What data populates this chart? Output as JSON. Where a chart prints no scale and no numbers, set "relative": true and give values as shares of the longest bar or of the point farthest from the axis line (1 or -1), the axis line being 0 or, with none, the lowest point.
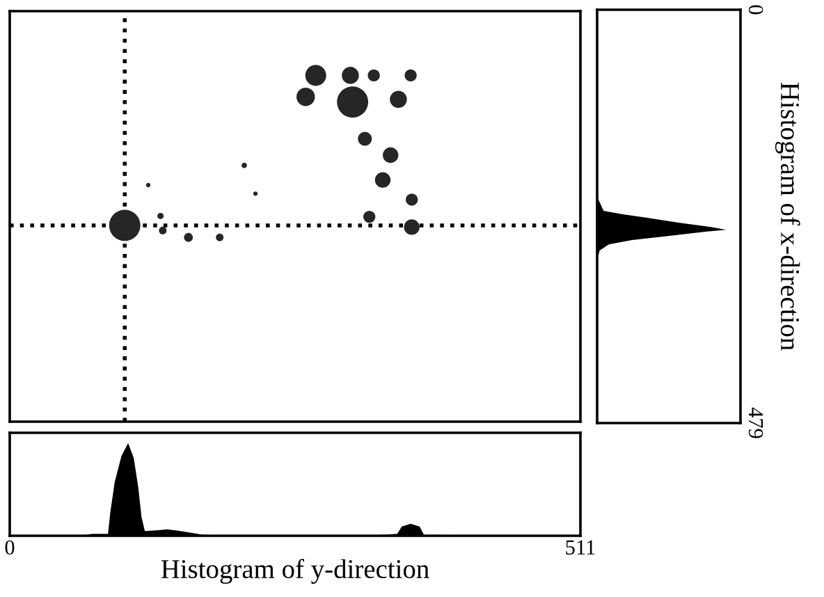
{
  "chart_data": [
    {
      "type": "bubble",
      "x": [
        103,
        274,
        305,
        326,
        359,
        265,
        307,
        348,
        318,
        341,
        334,
        360,
        322,
        360,
        135,
        137,
        160,
        188,
        210,
        124,
        220
      ],
      "values": [
        250,
        75,
        75,
        75,
        75,
        100,
        106,
        103,
        149,
        168,
        197,
        220,
        240,
        252,
        239,
        256,
        264,
        264,
        180,
        203,
        213
      ],
      "sizes": [
        1,
        0.45,
        0.3,
        0.15,
        0.15,
        0.35,
        1,
        0.3,
        0.2,
        0.25,
        0.25,
        0.15,
        0.15,
        0.25,
        0.04,
        0.06,
        0.08,
        0.06,
        0.03,
        0.02,
        0.02
      ],
      "color": "#262626",
      "marker": "circle",
      "xlim": [
        0,
        511
      ],
      "ylim": [
        479,
        0
      ],
      "tick_labels": false,
      "ref_lines": [
        {
          "axis": "x",
          "value": 103,
          "line_style": "dotted",
          "color": "#000000"
        },
        {
          "axis": "y",
          "value": 250,
          "line_style": "dotted",
          "color": "#000000"
        }
      ]
    },
    {
      "type": "area",
      "x": [
        0,
        62,
        74,
        88,
        90,
        94,
        100,
        106,
        111,
        115,
        118,
        121,
        133,
        141,
        153,
        174,
        207,
        320,
        347,
        351,
        359,
        367,
        371,
        511
      ],
      "values": [
        0,
        0,
        0.02,
        0.02,
        0.25,
        0.58,
        0.86,
        1,
        0.84,
        0.53,
        0.2,
        0.05,
        0.06,
        0.07,
        0.05,
        0.01,
        0,
        0,
        0.02,
        0.1,
        0.13,
        0.1,
        0.01,
        0
      ],
      "relative": true,
      "color": "#000000",
      "xlim": [
        0,
        511
      ],
      "xticks": [
        0,
        511
      ],
      "xlabel": "Histogram of y-direction",
      "tick_labels": "x"
    },
    {
      "type": "area",
      "orientation": "horizontal",
      "x": [
        0,
        204,
        220,
        233,
        237,
        241,
        247,
        252,
        255,
        257,
        262,
        267,
        272,
        279,
        290,
        479
      ],
      "values": [
        0,
        0,
        0.01,
        0.05,
        0.2,
        0.38,
        0.64,
        0.89,
        1,
        0.85,
        0.56,
        0.27,
        0.09,
        0.02,
        0,
        0
      ],
      "relative": true,
      "color": "#000000",
      "ylim": [
        479,
        0
      ],
      "yticks": [
        0,
        479
      ],
      "ylabel": "Histogram of x-direction",
      "tick_labels": "y"
    }
  ]
}
